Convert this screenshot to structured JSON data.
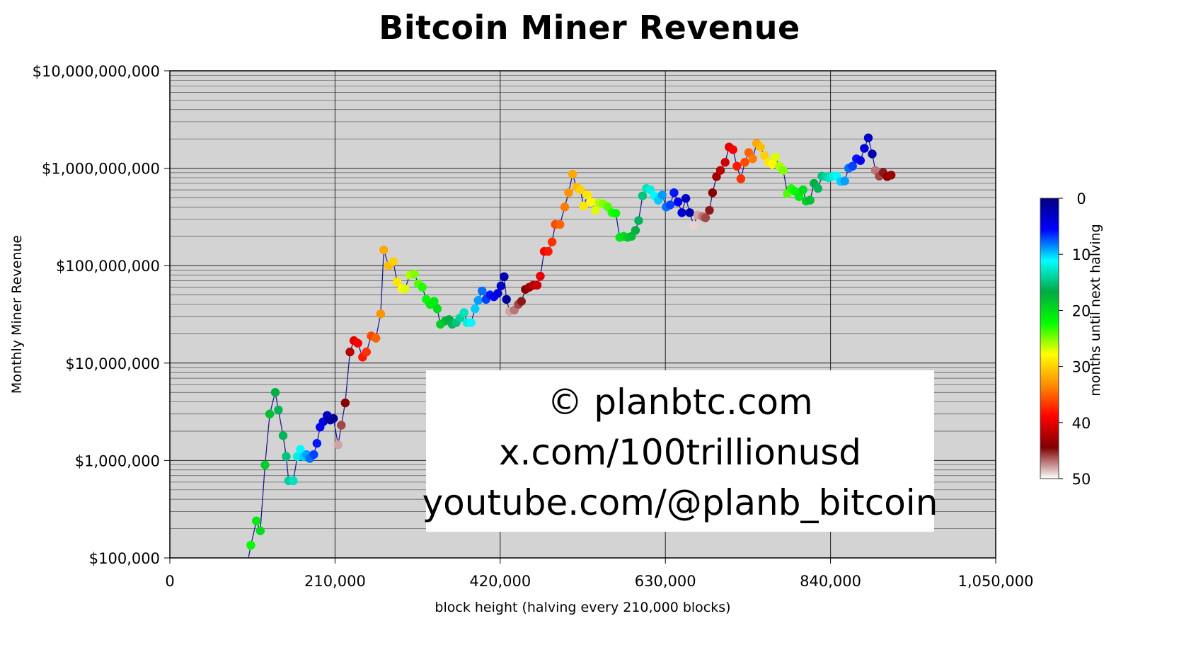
{
  "chart_data": {
    "type": "scatter",
    "title": "Bitcoin Miner Revenue",
    "xlabel": "block height (halving every 210,000 blocks)",
    "ylabel": "Monthly Miner Revenue",
    "x_ticks": [
      "0",
      "210,000",
      "420,000",
      "630,000",
      "840,000",
      "1,050,000"
    ],
    "x_tick_values": [
      0,
      210000,
      420000,
      630000,
      840000,
      1050000
    ],
    "xlim": [
      0,
      1050000
    ],
    "y_ticks": [
      "$100,000",
      "$1,000,000",
      "$10,000,000",
      "$100,000,000",
      "$1,000,000,000",
      "$10,000,000,000"
    ],
    "y_tick_values": [
      100000,
      1000000,
      10000000,
      100000000,
      1000000000,
      10000000000
    ],
    "ylim": [
      100000,
      10000000000
    ],
    "y_scale": "log",
    "grid": true,
    "connect_points": true,
    "line_color": "#1f1f8f",
    "plot_background": "#d3d3d3",
    "colorbar": {
      "label": "months until next halving",
      "ticks": [
        "0",
        "10",
        "20",
        "30",
        "40",
        "50"
      ],
      "tick_values": [
        0,
        10,
        20,
        30,
        40,
        50
      ],
      "range": [
        0,
        50
      ],
      "placement": "right",
      "colors": [
        "#00007f",
        "#0000ff",
        "#00ffff",
        "#00aa44",
        "#00ff00",
        "#ffff00",
        "#ff8c00",
        "#ff0000",
        "#7f0000",
        "#ffffff"
      ]
    },
    "points": [
      [
        103000,
        135000,
        22
      ],
      [
        110000,
        240000,
        21
      ],
      [
        115000,
        190000,
        20
      ],
      [
        121000,
        900000,
        19
      ],
      [
        127000,
        3000000,
        18
      ],
      [
        134000,
        5000000,
        17
      ],
      [
        138000,
        3300000,
        16
      ],
      [
        144000,
        1800000,
        16
      ],
      [
        148000,
        1100000,
        15
      ],
      [
        151000,
        620000,
        14
      ],
      [
        157000,
        620000,
        13
      ],
      [
        162000,
        1100000,
        12
      ],
      [
        166000,
        1300000,
        11
      ],
      [
        170000,
        1100000,
        10
      ],
      [
        174000,
        1150000,
        9
      ],
      [
        178000,
        1050000,
        8
      ],
      [
        183000,
        1150000,
        7
      ],
      [
        187000,
        1500000,
        6
      ],
      [
        191000,
        2200000,
        5
      ],
      [
        195000,
        2500000,
        4
      ],
      [
        200000,
        2900000,
        3
      ],
      [
        204000,
        2600000,
        2
      ],
      [
        208000,
        2700000,
        1
      ],
      [
        214000,
        1450000,
        48
      ],
      [
        218000,
        2300000,
        46
      ],
      [
        223000,
        3900000,
        44
      ],
      [
        229000,
        13000000,
        42
      ],
      [
        234000,
        17000000,
        40
      ],
      [
        239000,
        16000000,
        39
      ],
      [
        245000,
        11500000,
        38
      ],
      [
        250000,
        13000000,
        37
      ],
      [
        256000,
        19000000,
        36
      ],
      [
        262000,
        18000000,
        35
      ],
      [
        268000,
        32000000,
        33
      ],
      [
        272000,
        145000000,
        32
      ],
      [
        278000,
        100000000,
        31
      ],
      [
        284000,
        110000000,
        30
      ],
      [
        289000,
        68000000,
        29
      ],
      [
        295000,
        58000000,
        28
      ],
      [
        299000,
        58000000,
        27
      ],
      [
        305000,
        80000000,
        26
      ],
      [
        311000,
        82000000,
        25
      ],
      [
        316000,
        65000000,
        24
      ],
      [
        321000,
        60000000,
        23
      ],
      [
        326000,
        45000000,
        22
      ],
      [
        331000,
        40000000,
        21
      ],
      [
        336000,
        43000000,
        21
      ],
      [
        340000,
        36000000,
        20
      ],
      [
        344000,
        25000000,
        19
      ],
      [
        350000,
        27000000,
        18
      ],
      [
        355000,
        28000000,
        17
      ],
      [
        359000,
        25000000,
        16
      ],
      [
        364000,
        26000000,
        15
      ],
      [
        369000,
        29000000,
        14
      ],
      [
        374000,
        33000000,
        13
      ],
      [
        378000,
        26000000,
        12
      ],
      [
        383000,
        26000000,
        11
      ],
      [
        388000,
        36000000,
        10
      ],
      [
        392000,
        44000000,
        9
      ],
      [
        397000,
        55000000,
        8
      ],
      [
        402000,
        45000000,
        7
      ],
      [
        407000,
        50000000,
        6
      ],
      [
        412000,
        48000000,
        5
      ],
      [
        417000,
        52000000,
        4
      ],
      [
        421000,
        62000000,
        3
      ],
      [
        425000,
        77000000,
        2
      ],
      [
        428000,
        45000000,
        1
      ],
      [
        432000,
        34000000,
        48
      ],
      [
        438000,
        35000000,
        47
      ],
      [
        443000,
        40000000,
        46
      ],
      [
        447000,
        43000000,
        45
      ],
      [
        452000,
        57000000,
        44
      ],
      [
        457000,
        60000000,
        43
      ],
      [
        462000,
        63000000,
        42
      ],
      [
        467000,
        63000000,
        41
      ],
      [
        471000,
        78000000,
        40
      ],
      [
        476000,
        140000000,
        39
      ],
      [
        481000,
        140000000,
        38
      ],
      [
        486000,
        175000000,
        37
      ],
      [
        490000,
        265000000,
        36
      ],
      [
        496000,
        265000000,
        35
      ],
      [
        502000,
        400000000,
        34
      ],
      [
        507000,
        560000000,
        33
      ],
      [
        512000,
        870000000,
        32
      ],
      [
        517000,
        640000000,
        31
      ],
      [
        522000,
        600000000,
        30
      ],
      [
        526000,
        410000000,
        29
      ],
      [
        531000,
        530000000,
        29
      ],
      [
        536000,
        450000000,
        28
      ],
      [
        541000,
        370000000,
        27
      ],
      [
        546000,
        440000000,
        26
      ],
      [
        551000,
        430000000,
        25
      ],
      [
        557000,
        400000000,
        24
      ],
      [
        562000,
        350000000,
        23
      ],
      [
        567000,
        345000000,
        22
      ],
      [
        572000,
        195000000,
        21
      ],
      [
        577000,
        200000000,
        20
      ],
      [
        582000,
        195000000,
        19
      ],
      [
        587000,
        200000000,
        18
      ],
      [
        592000,
        230000000,
        17
      ],
      [
        596000,
        290000000,
        16
      ],
      [
        601000,
        520000000,
        15
      ],
      [
        606000,
        620000000,
        13
      ],
      [
        611000,
        600000000,
        12
      ],
      [
        616000,
        520000000,
        11
      ],
      [
        621000,
        470000000,
        10
      ],
      [
        626000,
        530000000,
        9
      ],
      [
        631000,
        400000000,
        8
      ],
      [
        636000,
        420000000,
        7
      ],
      [
        641000,
        560000000,
        6
      ],
      [
        646000,
        450000000,
        5
      ],
      [
        651000,
        350000000,
        4
      ],
      [
        656000,
        490000000,
        3
      ],
      [
        661000,
        350000000,
        2
      ],
      [
        666000,
        260000000,
        49
      ],
      [
        671000,
        330000000,
        48
      ],
      [
        677000,
        320000000,
        47
      ],
      [
        681000,
        310000000,
        46
      ],
      [
        686000,
        370000000,
        45
      ],
      [
        690000,
        560000000,
        44
      ],
      [
        695000,
        820000000,
        43
      ],
      [
        700000,
        950000000,
        42
      ],
      [
        706000,
        1150000000,
        41
      ],
      [
        711000,
        1650000000,
        40
      ],
      [
        716000,
        1550000000,
        39
      ],
      [
        721000,
        1050000000,
        38
      ],
      [
        726000,
        780000000,
        37
      ],
      [
        731000,
        1150000000,
        36
      ],
      [
        736000,
        1450000000,
        35
      ],
      [
        741000,
        1250000000,
        34
      ],
      [
        746000,
        1800000000,
        32
      ],
      [
        751000,
        1650000000,
        31
      ],
      [
        756000,
        1350000000,
        30
      ],
      [
        761000,
        1150000000,
        29
      ],
      [
        766000,
        1100000000,
        28
      ],
      [
        770000,
        1300000000,
        27
      ],
      [
        775000,
        1050000000,
        26
      ],
      [
        780000,
        950000000,
        25
      ],
      [
        785000,
        550000000,
        24
      ],
      [
        790000,
        620000000,
        23
      ],
      [
        795000,
        580000000,
        22
      ],
      [
        800000,
        510000000,
        21
      ],
      [
        805000,
        600000000,
        20
      ],
      [
        809000,
        460000000,
        19
      ],
      [
        814000,
        470000000,
        18
      ],
      [
        819000,
        700000000,
        17
      ],
      [
        824000,
        620000000,
        16
      ],
      [
        829000,
        830000000,
        15
      ],
      [
        834000,
        820000000,
        14
      ],
      [
        838000,
        800000000,
        13
      ],
      [
        843000,
        830000000,
        12
      ],
      [
        848000,
        830000000,
        11
      ],
      [
        853000,
        730000000,
        10
      ],
      [
        858000,
        740000000,
        9
      ],
      [
        863000,
        1000000000,
        8
      ],
      [
        868000,
        1050000000,
        7
      ],
      [
        873000,
        1250000000,
        6
      ],
      [
        878000,
        1200000000,
        5
      ],
      [
        883000,
        1600000000,
        4
      ],
      [
        888000,
        2050000000,
        3
      ],
      [
        893000,
        1400000000,
        2
      ],
      [
        897000,
        950000000,
        47
      ],
      [
        902000,
        830000000,
        46
      ],
      [
        907000,
        900000000,
        45
      ],
      [
        912000,
        820000000,
        44
      ],
      [
        917000,
        850000000,
        43
      ]
    ]
  },
  "watermark": {
    "line1": "© planbtc.com",
    "line2": "x.com/100trillionusd",
    "line3": "youtube.com/@planb_bitcoin"
  }
}
